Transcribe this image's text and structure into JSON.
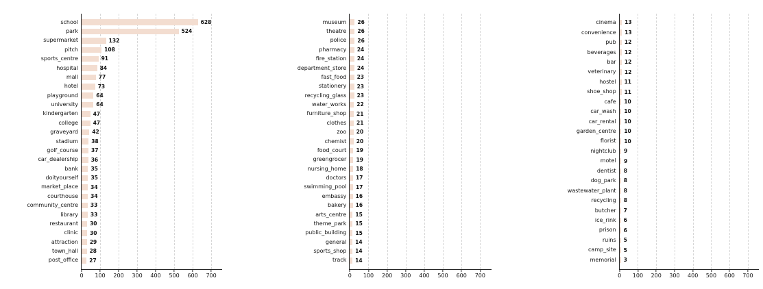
{
  "style": {
    "bar_color": "#f3ddd0",
    "grid_color": "#d6d6d6",
    "axis_color": "#262626",
    "text_color": "#111111"
  },
  "chart_data": [
    {
      "type": "bar",
      "orientation": "horizontal",
      "title": "",
      "xlabel": "",
      "ylabel": "",
      "legend": null,
      "grid": true,
      "xlim": [
        0,
        760
      ],
      "xticks": [
        0,
        100,
        200,
        300,
        400,
        500,
        600,
        700
      ],
      "bar_color": "#f3ddd0",
      "categories": [
        "school",
        "park",
        "supermarket",
        "pitch",
        "sports_centre",
        "hospital",
        "mall",
        "hotel",
        "playground",
        "university",
        "kindergarten",
        "college",
        "graveyard",
        "stadium",
        "golf_course",
        "car_dealership",
        "bank",
        "doityourself",
        "market_place",
        "courthouse",
        "community_centre",
        "library",
        "restaurant",
        "clinic",
        "attraction",
        "town_hall",
        "post_office"
      ],
      "values": [
        628,
        524,
        132,
        108,
        91,
        84,
        77,
        73,
        64,
        64,
        47,
        47,
        42,
        38,
        37,
        36,
        35,
        35,
        34,
        34,
        33,
        33,
        30,
        30,
        29,
        28,
        27
      ]
    },
    {
      "type": "bar",
      "orientation": "horizontal",
      "title": "",
      "xlabel": "",
      "ylabel": "",
      "legend": null,
      "grid": true,
      "xlim": [
        0,
        760
      ],
      "xticks": [
        0,
        100,
        200,
        300,
        400,
        500,
        600,
        700
      ],
      "bar_color": "#f3ddd0",
      "categories": [
        "museum",
        "theatre",
        "police",
        "pharmacy",
        "fire_station",
        "department_store",
        "fast_food",
        "stationery",
        "recycling_glass",
        "water_works",
        "furniture_shop",
        "clothes",
        "zoo",
        "chemist",
        "food_court",
        "greengrocer",
        "nursing_home",
        "doctors",
        "swimming_pool",
        "embassy",
        "bakery",
        "arts_centre",
        "theme_park",
        "public_building",
        "general",
        "sports_shop",
        "track"
      ],
      "values": [
        26,
        26,
        26,
        24,
        24,
        24,
        23,
        23,
        23,
        22,
        21,
        21,
        20,
        20,
        19,
        19,
        18,
        17,
        17,
        16,
        16,
        15,
        15,
        15,
        14,
        14,
        14
      ]
    },
    {
      "type": "bar",
      "orientation": "horizontal",
      "title": "",
      "xlabel": "",
      "ylabel": "",
      "legend": null,
      "grid": true,
      "xlim": [
        0,
        760
      ],
      "xticks": [
        0,
        100,
        200,
        300,
        400,
        500,
        600,
        700
      ],
      "bar_color": "#f3ddd0",
      "categories": [
        "cinema",
        "convenience",
        "pub",
        "beverages",
        "bar",
        "veterinary",
        "hostel",
        "shoe_shop",
        "cafe",
        "car_wash",
        "car_rental",
        "garden_centre",
        "florist",
        "nightclub",
        "motel",
        "dentist",
        "dog_park",
        "wastewater_plant",
        "recycling",
        "butcher",
        "ice_rink",
        "prison",
        "ruins",
        "camp_site",
        "memorial"
      ],
      "values": [
        13,
        13,
        12,
        12,
        12,
        12,
        11,
        11,
        10,
        10,
        10,
        10,
        10,
        9,
        9,
        8,
        8,
        8,
        8,
        7,
        6,
        6,
        5,
        5,
        3
      ]
    }
  ]
}
